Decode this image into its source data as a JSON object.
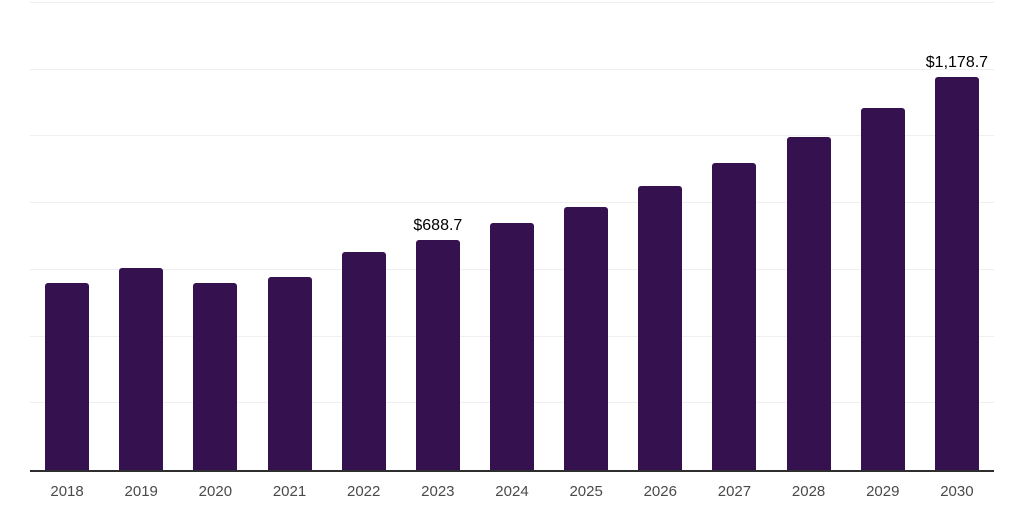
{
  "chart_data": {
    "type": "bar",
    "title": "",
    "xlabel": "",
    "ylabel": "",
    "categories": [
      "2018",
      "2019",
      "2020",
      "2021",
      "2022",
      "2023",
      "2024",
      "2025",
      "2026",
      "2027",
      "2028",
      "2029",
      "2030"
    ],
    "values": [
      562,
      607,
      560,
      578,
      654,
      688.7,
      740,
      789,
      852,
      920,
      997,
      1085,
      1178.7
    ],
    "annotations": [
      {
        "category": "2023",
        "label": "$688.7"
      },
      {
        "category": "2030",
        "label": "$1,178.7"
      }
    ],
    "ylim": [
      0,
      1400
    ],
    "gridline_step": 200,
    "grid": true,
    "legend": false,
    "y_axis_labels_visible": false,
    "colors": {
      "bar": "#36114f",
      "axis_line": "#2e2e2e",
      "gridline": "#efefef",
      "year_label": "#4a4a4a",
      "value_label": "#000000",
      "background": "#ffffff"
    }
  }
}
